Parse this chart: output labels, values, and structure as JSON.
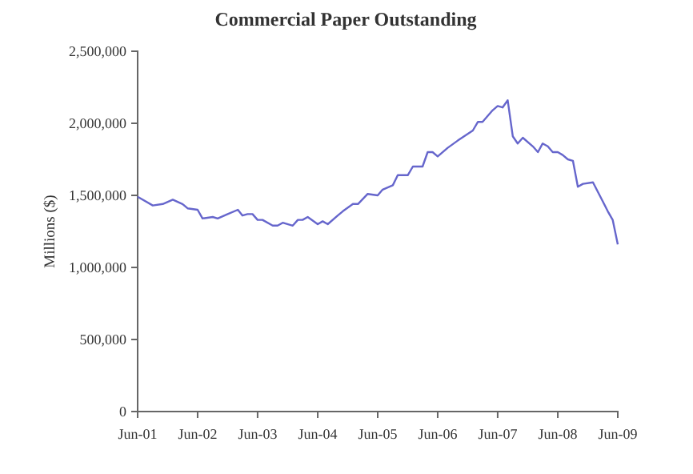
{
  "chart_data": {
    "type": "line",
    "title": "Commercial Paper Outstanding",
    "ylabel": "Millions ($)",
    "x": [
      "2001-06",
      "2001-09",
      "2001-11",
      "2002-01",
      "2002-03",
      "2002-04",
      "2002-06",
      "2002-07",
      "2002-09",
      "2002-10",
      "2002-12",
      "2003-02",
      "2003-03",
      "2003-04",
      "2003-05",
      "2003-06",
      "2003-07",
      "2003-09",
      "2003-10",
      "2003-11",
      "2004-01",
      "2004-02",
      "2004-03",
      "2004-04",
      "2004-06",
      "2004-07",
      "2004-08",
      "2004-10",
      "2004-11",
      "2005-01",
      "2005-02",
      "2005-04",
      "2005-06",
      "2005-07",
      "2005-09",
      "2005-10",
      "2005-12",
      "2006-01",
      "2006-03",
      "2006-04",
      "2006-05",
      "2006-06",
      "2006-08",
      "2006-10",
      "2007-01",
      "2007-02",
      "2007-03",
      "2007-05",
      "2007-06",
      "2007-07",
      "2007-08",
      "2007-09",
      "2007-10",
      "2007-11",
      "2008-01",
      "2008-02",
      "2008-03",
      "2008-04",
      "2008-05",
      "2008-06",
      "2008-07",
      "2008-08",
      "2008-09",
      "2008-10",
      "2008-11",
      "2009-01",
      "2009-03",
      "2009-04",
      "2009-05",
      "2009-06"
    ],
    "series": [
      {
        "color": "#6666cc",
        "values": [
          1490000,
          1430000,
          1440000,
          1470000,
          1440000,
          1410000,
          1400000,
          1340000,
          1350000,
          1340000,
          1370000,
          1400000,
          1360000,
          1370000,
          1370000,
          1330000,
          1330000,
          1290000,
          1290000,
          1310000,
          1290000,
          1330000,
          1330000,
          1350000,
          1300000,
          1320000,
          1300000,
          1360000,
          1390000,
          1440000,
          1440000,
          1510000,
          1500000,
          1540000,
          1570000,
          1640000,
          1640000,
          1700000,
          1700000,
          1800000,
          1800000,
          1770000,
          1830000,
          1880000,
          1950000,
          2010000,
          2010000,
          2090000,
          2120000,
          2110000,
          2160000,
          1910000,
          1860000,
          1900000,
          1840000,
          1800000,
          1860000,
          1840000,
          1800000,
          1800000,
          1780000,
          1750000,
          1740000,
          1560000,
          1580000,
          1590000,
          1460000,
          1390000,
          1330000,
          1160000
        ]
      }
    ],
    "xlim": [
      "2001-06",
      "2009-06"
    ],
    "xticks": [
      {
        "value": "2001-06",
        "label": "Jun-01"
      },
      {
        "value": "2002-06",
        "label": "Jun-02"
      },
      {
        "value": "2003-06",
        "label": "Jun-03"
      },
      {
        "value": "2004-06",
        "label": "Jun-04"
      },
      {
        "value": "2005-06",
        "label": "Jun-05"
      },
      {
        "value": "2006-06",
        "label": "Jun-06"
      },
      {
        "value": "2007-06",
        "label": "Jun-07"
      },
      {
        "value": "2008-06",
        "label": "Jun-08"
      },
      {
        "value": "2009-06",
        "label": "Jun-09"
      }
    ],
    "ylim": [
      0,
      2500000
    ],
    "yticks": [
      {
        "value": 0,
        "label": "0"
      },
      {
        "value": 500000,
        "label": "500,000"
      },
      {
        "value": 1000000,
        "label": "1,000,000"
      },
      {
        "value": 1500000,
        "label": "1,500,000"
      },
      {
        "value": 2000000,
        "label": "2,000,000"
      },
      {
        "value": 2500000,
        "label": "2,500,000"
      }
    ],
    "grid": false,
    "marker": "none",
    "line_style": "solid"
  }
}
